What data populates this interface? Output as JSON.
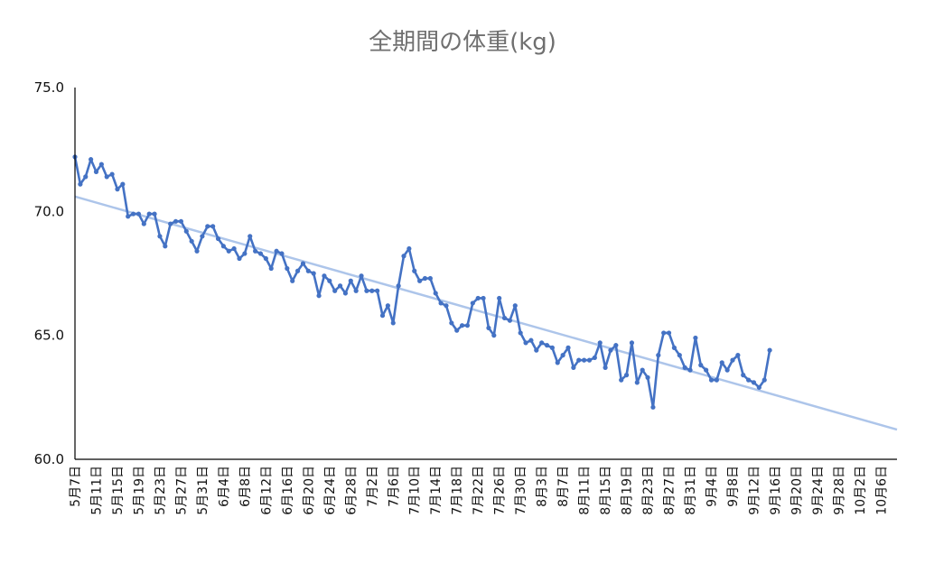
{
  "chart_data": {
    "type": "line",
    "title": "全期間の体重(kg)",
    "xlabel": "",
    "ylabel": "",
    "ylim": [
      60,
      75
    ],
    "ytick_labels": [
      "75.0",
      "70.0",
      "65.0",
      "60.0"
    ],
    "x_tick_labels": [
      "5月7日",
      "5月11日",
      "5月15日",
      "5月19日",
      "5月23日",
      "5月27日",
      "5月31日",
      "6月4日",
      "6月8日",
      "6月12日",
      "6月16日",
      "6月20日",
      "6月24日",
      "6月28日",
      "7月2日",
      "7月6日",
      "7月10日",
      "7月14日",
      "7月18日",
      "7月22日",
      "7月26日",
      "7月30日",
      "8月3日",
      "8月7日",
      "8月11日",
      "8月15日",
      "8月19日",
      "8月23日",
      "8月27日",
      "8月31日",
      "9月4日",
      "9月8日",
      "9月12日",
      "9月16日",
      "9月20日",
      "9月24日",
      "9月28日",
      "10月2日",
      "10月6日"
    ],
    "x_start": "5月7日",
    "x_end": "10月9日",
    "grid": false,
    "legend": "none",
    "colors": {
      "series": "#4472c4",
      "trend": "#adc5ea",
      "axis": "#000000"
    },
    "series": [
      {
        "values": [
          72.2,
          71.1,
          71.4,
          72.1,
          71.6,
          71.9,
          71.4,
          71.5,
          70.9,
          71.1,
          69.8,
          69.9,
          69.9,
          69.5,
          69.9,
          69.9,
          69.0,
          68.6,
          69.5,
          69.6,
          69.6,
          69.2,
          68.8,
          68.4,
          69.0,
          69.4,
          69.4,
          68.9,
          68.6,
          68.4,
          68.5,
          68.1,
          68.3,
          69.0,
          68.4,
          68.3,
          68.1,
          67.7,
          68.4,
          68.3,
          67.7,
          67.2,
          67.6,
          67.9,
          67.6,
          67.5,
          66.6,
          67.4,
          67.2,
          66.8,
          67.0,
          66.7,
          67.2,
          66.8,
          67.4,
          66.8,
          66.8,
          66.8,
          65.8,
          66.2,
          65.5,
          67.0,
          68.2,
          68.5,
          67.6,
          67.2,
          67.3,
          67.3,
          66.7,
          66.3,
          66.2,
          65.5,
          65.2,
          65.4,
          65.4,
          66.3,
          66.5,
          66.5,
          65.3,
          65.0,
          66.5,
          65.7,
          65.6,
          66.2,
          65.1,
          64.7,
          64.8,
          64.4,
          64.7,
          64.6,
          64.5,
          63.9,
          64.2,
          64.5,
          63.7,
          64.0,
          64.0,
          64.0,
          64.1,
          64.7,
          63.7,
          64.4,
          64.6,
          63.2,
          63.4,
          64.7,
          63.1,
          63.6,
          63.3,
          62.1,
          64.2,
          65.1,
          65.1,
          64.5,
          64.2,
          63.7,
          63.6,
          64.9,
          63.8,
          63.6,
          63.2,
          63.2,
          63.9,
          63.6,
          64.0,
          64.2,
          63.4,
          63.2,
          63.1,
          62.9,
          63.2,
          64.4
        ]
      }
    ],
    "trendline": {
      "start": 70.6,
      "end": 61.2
    }
  }
}
